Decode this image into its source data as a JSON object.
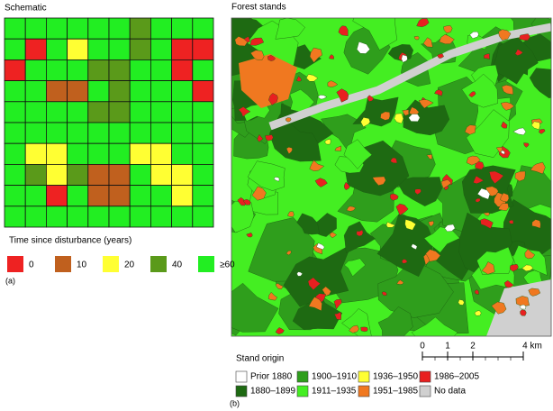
{
  "schematic": {
    "title": "Schematic",
    "grid": [
      [
        60,
        60,
        60,
        60,
        60,
        60,
        40,
        60,
        60,
        60
      ],
      [
        60,
        0,
        60,
        20,
        60,
        60,
        40,
        60,
        0,
        0
      ],
      [
        0,
        60,
        60,
        60,
        40,
        40,
        60,
        60,
        0,
        60
      ],
      [
        60,
        60,
        10,
        10,
        60,
        40,
        60,
        60,
        60,
        0
      ],
      [
        60,
        60,
        60,
        60,
        40,
        40,
        60,
        60,
        60,
        60
      ],
      [
        60,
        60,
        60,
        60,
        60,
        60,
        60,
        60,
        60,
        60
      ],
      [
        60,
        20,
        20,
        60,
        60,
        60,
        20,
        20,
        60,
        60
      ],
      [
        60,
        40,
        20,
        40,
        10,
        10,
        60,
        20,
        20,
        60
      ],
      [
        60,
        60,
        0,
        60,
        10,
        10,
        60,
        60,
        20,
        60
      ],
      [
        60,
        60,
        60,
        60,
        60,
        60,
        60,
        60,
        60,
        60
      ]
    ],
    "legend_title": "Time since disturbance (years)",
    "legend": [
      {
        "value": 0,
        "label": "0",
        "color": "#ee2222"
      },
      {
        "value": 10,
        "label": "10",
        "color": "#c0601e"
      },
      {
        "value": 20,
        "label": "20",
        "color": "#ffff33"
      },
      {
        "value": 40,
        "label": "40",
        "color": "#5a9a1a"
      },
      {
        "value": 60,
        "label": "≥60",
        "color": "#22ee22"
      }
    ],
    "caption": "(a)"
  },
  "map": {
    "title": "Forest stands",
    "legend_title": "Stand origin",
    "legend": [
      {
        "label": "Prior 1880",
        "color": "#ffffff"
      },
      {
        "label": "1880–1899",
        "color": "#1e6a12"
      },
      {
        "label": "1900–1910",
        "color": "#2f9e1c"
      },
      {
        "label": "1911–1935",
        "color": "#44ee22"
      },
      {
        "label": "1936–1950",
        "color": "#ffff33"
      },
      {
        "label": "1951–1985",
        "color": "#f07820"
      },
      {
        "label": "1986–2005",
        "color": "#e82020"
      },
      {
        "label": "No data",
        "color": "#d0d0d0"
      }
    ],
    "scale_ticks": [
      0,
      1,
      2,
      {
        "value": 4,
        "label": "4 km"
      }
    ],
    "caption": "(b)"
  }
}
